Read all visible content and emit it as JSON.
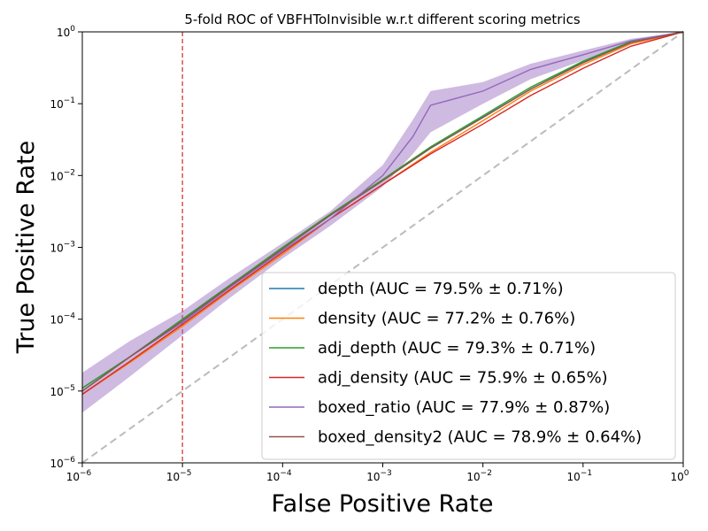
{
  "chart_data": {
    "type": "line",
    "title": "5-fold ROC of VBFHToInvisible w.r.t different scoring metrics",
    "xlabel": "False Positive Rate",
    "ylabel": "True Positive Rate",
    "xscale": "log",
    "yscale": "log",
    "xlim": [
      1e-06,
      1
    ],
    "ylim": [
      1e-06,
      1
    ],
    "x_ticks": [
      {
        "value": 1e-06,
        "mant": "10",
        "exp": "−6"
      },
      {
        "value": 1e-05,
        "mant": "10",
        "exp": "−5"
      },
      {
        "value": 0.0001,
        "mant": "10",
        "exp": "−4"
      },
      {
        "value": 0.001,
        "mant": "10",
        "exp": "−3"
      },
      {
        "value": 0.01,
        "mant": "10",
        "exp": "−2"
      },
      {
        "value": 0.1,
        "mant": "10",
        "exp": "−1"
      },
      {
        "value": 1,
        "mant": "10",
        "exp": "0"
      }
    ],
    "y_ticks": [
      {
        "value": 1e-06,
        "mant": "10",
        "exp": "−6"
      },
      {
        "value": 1e-05,
        "mant": "10",
        "exp": "−5"
      },
      {
        "value": 0.0001,
        "mant": "10",
        "exp": "−4"
      },
      {
        "value": 0.001,
        "mant": "10",
        "exp": "−3"
      },
      {
        "value": 0.01,
        "mant": "10",
        "exp": "−2"
      },
      {
        "value": 0.1,
        "mant": "10",
        "exp": "−1"
      },
      {
        "value": 1,
        "mant": "10",
        "exp": "0"
      }
    ],
    "reference_line": {
      "x": 1e-05,
      "color": "#d62728",
      "style": "dashed"
    },
    "diagonal": {
      "color": "#bbbbbb",
      "style": "dashed"
    },
    "legend_position": "lower-right",
    "series": [
      {
        "name": "depth (AUC = 79.5% ± 0.71%)",
        "color": "#1f77b4",
        "x": [
          1e-06,
          3e-06,
          1e-05,
          3e-05,
          0.0001,
          0.0003,
          0.001,
          0.003,
          0.01,
          0.03,
          0.1,
          0.3,
          1
        ],
        "y": [
          1.1e-05,
          3e-05,
          0.0001,
          0.0003,
          0.00095,
          0.0028,
          0.0085,
          0.024,
          0.065,
          0.16,
          0.38,
          0.72,
          1
        ]
      },
      {
        "name": "density (AUC = 77.2% ± 0.76%)",
        "color": "#ff7f0e",
        "x": [
          1e-06,
          3e-06,
          1e-05,
          3e-05,
          0.0001,
          0.0003,
          0.001,
          0.003,
          0.01,
          0.03,
          0.1,
          0.3,
          1
        ],
        "y": [
          9e-06,
          2.5e-05,
          8e-05,
          0.00025,
          0.0008,
          0.0025,
          0.0075,
          0.021,
          0.058,
          0.15,
          0.35,
          0.68,
          1
        ]
      },
      {
        "name": "adj_depth (AUC = 79.3% ± 0.71%)",
        "color": "#2ca02c",
        "x": [
          1e-06,
          3e-06,
          1e-05,
          3e-05,
          0.0001,
          0.0003,
          0.001,
          0.003,
          0.01,
          0.03,
          0.1,
          0.3,
          1
        ],
        "y": [
          1.1e-05,
          3e-05,
          0.0001,
          0.0003,
          0.001,
          0.0029,
          0.0088,
          0.025,
          0.068,
          0.17,
          0.39,
          0.73,
          1
        ]
      },
      {
        "name": "adj_density (AUC = 75.9% ± 0.65%)",
        "color": "#d62728",
        "x": [
          1e-06,
          3e-06,
          1e-05,
          3e-05,
          0.0001,
          0.0003,
          0.001,
          0.003,
          0.01,
          0.03,
          0.1,
          0.3,
          1
        ],
        "y": [
          9e-06,
          2.6e-05,
          8.5e-05,
          0.00026,
          0.00085,
          0.0025,
          0.0075,
          0.02,
          0.052,
          0.13,
          0.31,
          0.63,
          1
        ]
      },
      {
        "name": "boxed_ratio (AUC = 77.9% ± 0.87%)",
        "color": "#9467bd",
        "x": [
          1e-06,
          3e-06,
          1e-05,
          3e-05,
          0.0001,
          0.0003,
          0.001,
          0.002,
          0.003,
          0.01,
          0.03,
          0.1,
          0.3,
          1
        ],
        "y": [
          1e-05,
          3e-05,
          9e-05,
          0.00028,
          0.0009,
          0.0025,
          0.01,
          0.035,
          0.095,
          0.15,
          0.3,
          0.48,
          0.75,
          1
        ],
        "band_lower": [
          5e-06,
          1.6e-05,
          6e-05,
          0.0002,
          0.0007,
          0.002,
          0.007,
          0.02,
          0.04,
          0.1,
          0.22,
          0.4,
          0.7,
          1
        ],
        "band_upper": [
          1.8e-05,
          5e-05,
          0.00013,
          0.00038,
          0.00115,
          0.0032,
          0.014,
          0.06,
          0.15,
          0.2,
          0.36,
          0.55,
          0.8,
          1
        ]
      },
      {
        "name": "boxed_density2 (AUC = 78.9% ± 0.64%)",
        "color": "#8c564b",
        "x": [
          1e-06,
          3e-06,
          1e-05,
          3e-05,
          0.0001,
          0.0003,
          0.001,
          0.003,
          0.01,
          0.03,
          0.1,
          0.3,
          1
        ],
        "y": [
          1e-05,
          3e-05,
          9.5e-05,
          0.00029,
          0.00095,
          0.0028,
          0.0085,
          0.024,
          0.064,
          0.16,
          0.37,
          0.71,
          1
        ]
      }
    ]
  }
}
